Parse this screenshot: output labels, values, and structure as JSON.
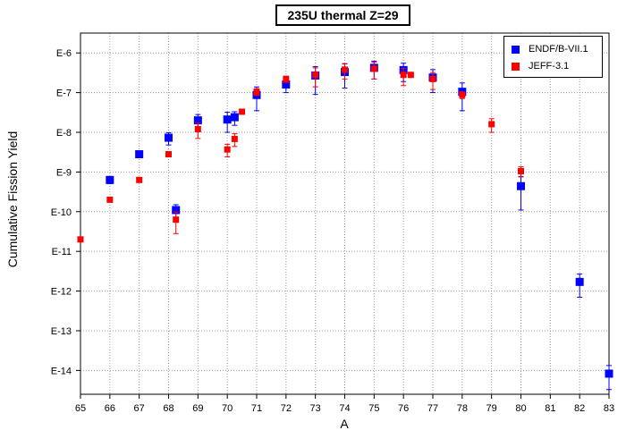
{
  "chart_data": {
    "type": "scatter",
    "title": "235U thermal Z=29",
    "xlabel": "A",
    "ylabel": "Cumulative Fission Yield",
    "yscale": "log",
    "ylim_exponent": [
      -14.6,
      -5.5
    ],
    "y_tick_labels": [
      "E-6",
      "E-7",
      "E-8",
      "E-9",
      "E-10",
      "E-11",
      "E-12",
      "E-13",
      "E-14"
    ],
    "y_tick_exponents": [
      -6,
      -7,
      -8,
      -9,
      -10,
      -11,
      -12,
      -13,
      -14
    ],
    "x_categories": [
      "65",
      "66",
      "67",
      "68",
      "69",
      "70",
      "71",
      "72",
      "73",
      "74",
      "75",
      "76",
      "77",
      "78",
      "79",
      "80",
      "81",
      "82",
      "83"
    ],
    "grid": true,
    "legend_position": "top-right",
    "series": [
      {
        "name": "ENDF/B-VII.1",
        "color": "#0000ff",
        "marker": "square",
        "points": [
          {
            "x": 66,
            "y": 6.3e-10,
            "err_lo": 1.2e-10,
            "err_hi": 1.2e-10
          },
          {
            "x": 67,
            "y": 2.8e-09,
            "err_lo": 5e-10,
            "err_hi": 5e-10
          },
          {
            "x": 68,
            "y": 7.3e-09,
            "err_lo": 2.5e-09,
            "err_hi": 2.5e-09
          },
          {
            "x": 68.25,
            "y": 1.1e-10,
            "err_lo": 4e-11,
            "err_hi": 4e-11
          },
          {
            "x": 69,
            "y": 2e-08,
            "err_lo": 8e-09,
            "err_hi": 8e-09
          },
          {
            "x": 70,
            "y": 2.1e-08,
            "err_lo": 1.1e-08,
            "err_hi": 1.1e-08
          },
          {
            "x": 70.25,
            "y": 2.4e-08,
            "err_lo": 9e-09,
            "err_hi": 9e-09
          },
          {
            "x": 71,
            "y": 8.7e-08,
            "err_lo": 5.2e-08,
            "err_hi": 5.2e-08
          },
          {
            "x": 72,
            "y": 1.6e-07,
            "err_lo": 6e-08,
            "err_hi": 6e-08
          },
          {
            "x": 73,
            "y": 2.7e-07,
            "err_lo": 1.8e-07,
            "err_hi": 1.8e-07
          },
          {
            "x": 74,
            "y": 3.3e-07,
            "err_lo": 2e-07,
            "err_hi": 2e-07
          },
          {
            "x": 75,
            "y": 4.2e-07,
            "err_lo": 2e-07,
            "err_hi": 2e-07
          },
          {
            "x": 76,
            "y": 3.7e-07,
            "err_lo": 1.8e-07,
            "err_hi": 1.8e-07
          },
          {
            "x": 77,
            "y": 2.4e-07,
            "err_lo": 1.4e-07,
            "err_hi": 1.4e-07
          },
          {
            "x": 78,
            "y": 1.05e-07,
            "err_lo": 7e-08,
            "err_hi": 7e-08
          },
          {
            "x": 80,
            "y": 4.4e-10,
            "err_lo": 3.3e-10,
            "err_hi": 3.3e-10
          },
          {
            "x": 82,
            "y": 1.7e-12,
            "err_lo": 1e-12,
            "err_hi": 1e-12
          },
          {
            "x": 83,
            "y": 8.3e-15,
            "err_lo": 5e-15,
            "err_hi": 5e-15
          }
        ]
      },
      {
        "name": "JEFF-3.1",
        "color": "#ff0000",
        "marker": "square",
        "points": [
          {
            "x": 65,
            "y": 2e-11
          },
          {
            "x": 66,
            "y": 2e-10
          },
          {
            "x": 67,
            "y": 6.3e-10
          },
          {
            "x": 68,
            "y": 2.8e-09
          },
          {
            "x": 68.25,
            "y": 6.3e-11,
            "err_lo": 3.5e-11,
            "err_hi": 3.5e-11
          },
          {
            "x": 69,
            "y": 1.2e-08,
            "err_lo": 5e-09,
            "err_hi": 5e-09
          },
          {
            "x": 70,
            "y": 3.7e-09,
            "err_lo": 1.3e-09,
            "err_hi": 1.3e-09
          },
          {
            "x": 70.25,
            "y": 6.8e-09,
            "err_lo": 2.4e-09,
            "err_hi": 2.4e-09
          },
          {
            "x": 70.5,
            "y": 3.3e-08
          },
          {
            "x": 71,
            "y": 1.05e-07,
            "err_lo": 2e-08,
            "err_hi": 2e-08
          },
          {
            "x": 72,
            "y": 2.2e-07,
            "err_lo": 4e-08,
            "err_hi": 4e-08
          },
          {
            "x": 73,
            "y": 2.8e-07,
            "err_lo": 1.4e-07,
            "err_hi": 1.4e-07
          },
          {
            "x": 74,
            "y": 3.8e-07,
            "err_lo": 1.6e-07,
            "err_hi": 1.6e-07
          },
          {
            "x": 75,
            "y": 4e-07,
            "err_lo": 1.8e-07,
            "err_hi": 1.8e-07
          },
          {
            "x": 76,
            "y": 2.8e-07,
            "err_lo": 1.3e-07,
            "err_hi": 1.3e-07
          },
          {
            "x": 76.25,
            "y": 2.8e-07
          },
          {
            "x": 77,
            "y": 2.2e-07,
            "err_lo": 1e-07,
            "err_hi": 1e-07
          },
          {
            "x": 78,
            "y": 8.8e-08,
            "err_lo": 1.7e-08,
            "err_hi": 1.7e-08
          },
          {
            "x": 79,
            "y": 1.6e-08,
            "err_lo": 6e-09,
            "err_hi": 6e-09
          },
          {
            "x": 80,
            "y": 1.05e-09,
            "err_lo": 3e-10,
            "err_hi": 3e-10
          }
        ]
      }
    ]
  }
}
